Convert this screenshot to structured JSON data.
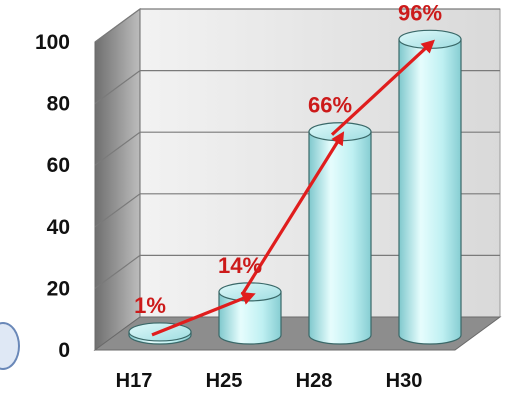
{
  "chart_data": {
    "type": "bar",
    "bar_style": "3d-cylinder",
    "categories": [
      "H17",
      "H25",
      "H28",
      "H30"
    ],
    "values": [
      1,
      14,
      66,
      96
    ],
    "data_labels": [
      "1%",
      "14%",
      "66%",
      "96%"
    ],
    "ylim": [
      0,
      100
    ],
    "yticks": [
      "0",
      "20",
      "40",
      "60",
      "80",
      "100"
    ],
    "grid": true,
    "legend": "none",
    "trend_arrow": true,
    "title": "",
    "xlabel": "",
    "ylabel": "",
    "colors": {
      "bar_face": "#c2f1f3",
      "bar_edge": "#3a6868",
      "wall": "#dedede",
      "floor": "#8d8d8d",
      "gridline": "#7a7a7a",
      "arrow": "#e01d1d",
      "data_label": "#cc1a1a",
      "text": "#111111"
    }
  }
}
